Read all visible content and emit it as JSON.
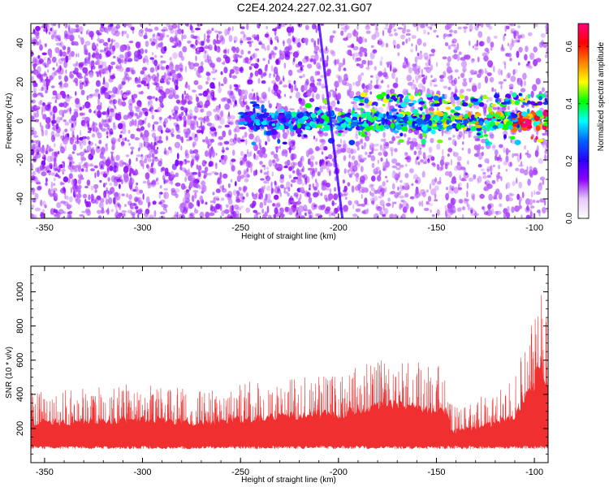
{
  "figure": {
    "title": "C2E4.2024.227.02.31.G07"
  },
  "chart_data": [
    {
      "type": "heatmap",
      "title": "C2E4.2024.227.02.31.G07",
      "xlabel": "Height of straight line (km)",
      "ylabel": "Frequency (Hz)",
      "xlim": [
        -357,
        -93
      ],
      "ylim": [
        -50,
        50
      ],
      "x_ticks": [
        -350,
        -300,
        -250,
        -200,
        -150,
        -100
      ],
      "y_ticks": [
        -40,
        -20,
        0,
        20,
        40
      ],
      "colorbar": {
        "label": "Normalized spectral amplitude",
        "range": [
          0,
          0.68
        ],
        "ticks": [
          0.0,
          0.2,
          0.4,
          0.6
        ],
        "colormap": [
          "#ffffff",
          "#e8c8f8",
          "#8c00ff",
          "#2a00ff",
          "#0064ff",
          "#00ffff",
          "#00ff00",
          "#ffff00",
          "#ff8000",
          "#ff0000",
          "#ff0080"
        ]
      },
      "features": {
        "background_noise_level": 0.08,
        "signal_band_center_hz": 0,
        "signal_band_halfwidth_hz": 4,
        "signal_band_from_km": -250,
        "peak_amplitude_near_km": -100,
        "diagonal_streak": {
          "from": [
            -210,
            50
          ],
          "to": [
            -198,
            -50
          ]
        }
      },
      "grid": false
    },
    {
      "type": "area",
      "title": "",
      "xlabel": "Height of straight line (km)",
      "ylabel": "SNR (10 * v/v)",
      "xlim": [
        -357,
        -93
      ],
      "ylim": [
        0,
        1150
      ],
      "x_ticks": [
        -350,
        -300,
        -250,
        -200,
        -150,
        -100
      ],
      "y_ticks": [
        200,
        400,
        600,
        800,
        1000
      ],
      "series": [
        {
          "color": "#f03030",
          "envelope_x": [
            -357,
            -330,
            -300,
            -270,
            -250,
            -230,
            -210,
            -200,
            -190,
            -170,
            -160,
            -145,
            -142,
            -130,
            -120,
            -110,
            -105,
            -100,
            -97,
            -93
          ],
          "envelope_upper": [
            380,
            400,
            420,
            380,
            420,
            440,
            470,
            450,
            510,
            560,
            530,
            500,
            300,
            340,
            380,
            460,
            620,
            760,
            1000,
            680
          ],
          "baseline": 80
        }
      ],
      "grid": false
    }
  ]
}
